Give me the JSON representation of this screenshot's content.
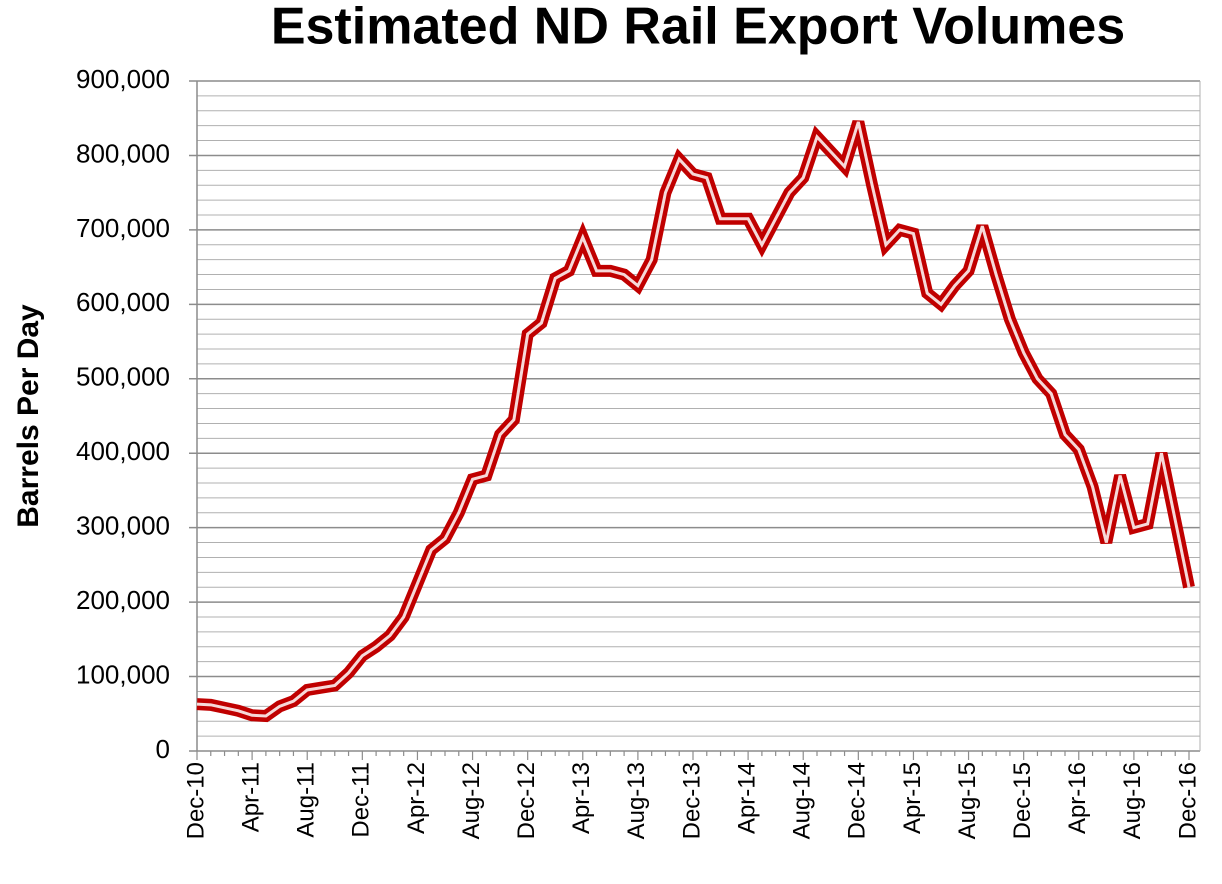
{
  "chart_data": {
    "type": "line",
    "title": "Estimated ND Rail Export Volumes",
    "y_label": "Barrels Per Day",
    "categories": [
      "Dec-10",
      null,
      null,
      null,
      "Apr-11",
      null,
      null,
      null,
      "Aug-11",
      null,
      null,
      null,
      "Dec-11",
      null,
      null,
      null,
      "Apr-12",
      null,
      null,
      null,
      "Aug-12",
      null,
      null,
      null,
      "Dec-12",
      null,
      null,
      null,
      "Apr-13",
      null,
      null,
      null,
      "Aug-13",
      null,
      null,
      null,
      "Dec-13",
      null,
      null,
      null,
      "Apr-14",
      null,
      null,
      null,
      "Aug-14",
      null,
      null,
      null,
      "Dec-14",
      null,
      null,
      null,
      "Apr-15",
      null,
      null,
      null,
      "Aug-15",
      null,
      null,
      null,
      "Dec-15",
      null,
      null,
      null,
      "Apr-16",
      null,
      null,
      null,
      "Aug-16",
      null,
      null,
      null,
      "Dec-16"
    ],
    "series": [
      {
        "color": "#c00000",
        "values": [
          63000,
          62000,
          58000,
          54000,
          48000,
          47000,
          60000,
          67000,
          82000,
          85000,
          88000,
          105000,
          128000,
          140000,
          155000,
          180000,
          225000,
          270000,
          285000,
          320000,
          365000,
          370000,
          425000,
          445000,
          560000,
          575000,
          635000,
          645000,
          690000,
          645000,
          645000,
          640000,
          625000,
          660000,
          750000,
          795000,
          775000,
          770000,
          715000,
          715000,
          715000,
          680000,
          715000,
          750000,
          770000,
          825000,
          805000,
          785000,
          845000,
          760000,
          680000,
          700000,
          695000,
          615000,
          600000,
          625000,
          645000,
          705000,
          640000,
          580000,
          535000,
          500000,
          480000,
          425000,
          405000,
          355000,
          280000,
          370000,
          300000,
          305000,
          400000,
          310000,
          220000
        ]
      }
    ],
    "ylim": [
      0,
      900000
    ],
    "yticks": [
      0,
      {
        "value": 100000,
        "label": "100,000"
      },
      {
        "value": 200000,
        "label": "200,000"
      },
      {
        "value": 300000,
        "label": "300,000"
      },
      {
        "value": 400000,
        "label": "400,000"
      },
      {
        "value": 500000,
        "label": "500,000"
      },
      {
        "value": 600000,
        "label": "600,000"
      },
      {
        "value": 700000,
        "label": "700,000"
      },
      {
        "value": 800000,
        "label": "800,000"
      },
      {
        "value": 900000,
        "label": "900,000"
      }
    ],
    "grid": true
  }
}
